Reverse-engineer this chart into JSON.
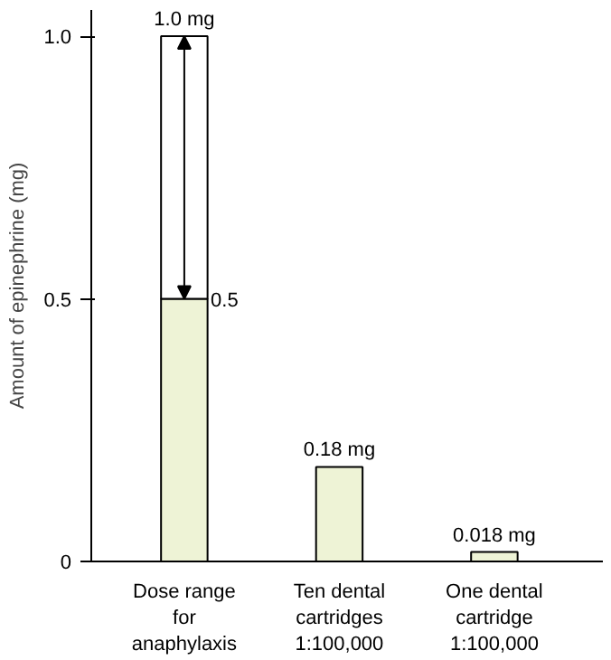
{
  "chart_data": {
    "type": "bar",
    "ylabel": "Amount of epinephrine (mg)",
    "categories": [
      "Dose range\nfor\nanaphylaxis",
      "Ten dental\ncartridges\n1:100,000",
      "One dental\ncartridge\n1:100,000"
    ],
    "stacked": true,
    "ylim": [
      0,
      1.05
    ],
    "yticks": [
      0,
      {
        "value": 0.5,
        "label": "0.5"
      },
      {
        "value": 1.0,
        "label": "1.0"
      }
    ],
    "grid": false,
    "totals": [
      "1.0 mg",
      "0.18 mg",
      "0.018 mg"
    ],
    "series": [
      {
        "color": "#eef3d6",
        "values": [
          0.5,
          0.18,
          0.018
        ],
        "value_labels": [
          "0.5",
          null,
          null
        ]
      },
      {
        "color": "#ffffff",
        "values": [
          0.5,
          null,
          null
        ]
      }
    ]
  }
}
